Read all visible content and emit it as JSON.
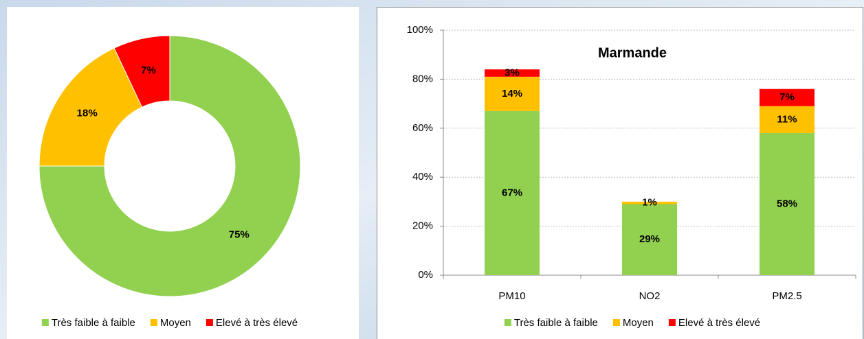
{
  "chart_data": [
    {
      "type": "pie",
      "categories": [
        "Très faible à faible",
        "Moyen",
        "Elevé à très élevé"
      ],
      "values": [
        75,
        18,
        7
      ],
      "value_labels": [
        "75%",
        "18%",
        "7%"
      ],
      "colors": [
        "#92d050",
        "#ffc000",
        "#ff0000"
      ],
      "legend": "bottom"
    },
    {
      "type": "bar",
      "title": "Marmande",
      "stacked": true,
      "categories": [
        "PM10",
        "NO2",
        "PM2.5"
      ],
      "series": [
        {
          "name": "Très faible à faible",
          "color": "#92d050",
          "values": [
            67,
            29,
            58
          ],
          "value_labels": [
            "67%",
            "29%",
            "58%"
          ]
        },
        {
          "name": "Moyen",
          "color": "#ffc000",
          "values": [
            14,
            1,
            11
          ],
          "value_labels": [
            "14%",
            "1%",
            "11%"
          ]
        },
        {
          "name": "Elevé à très élevé",
          "color": "#ff0000",
          "values": [
            3,
            null,
            7
          ],
          "value_labels": [
            "3%",
            null,
            "7%"
          ]
        }
      ],
      "ylim": [
        0,
        100
      ],
      "yticks": [
        {
          "value": 0,
          "label": "0%"
        },
        {
          "value": 20,
          "label": "20%"
        },
        {
          "value": 40,
          "label": "40%"
        },
        {
          "value": 60,
          "label": "60%"
        },
        {
          "value": 80,
          "label": "80%"
        },
        {
          "value": 100,
          "label": "100%"
        }
      ],
      "grid": true,
      "legend": "bottom"
    }
  ]
}
